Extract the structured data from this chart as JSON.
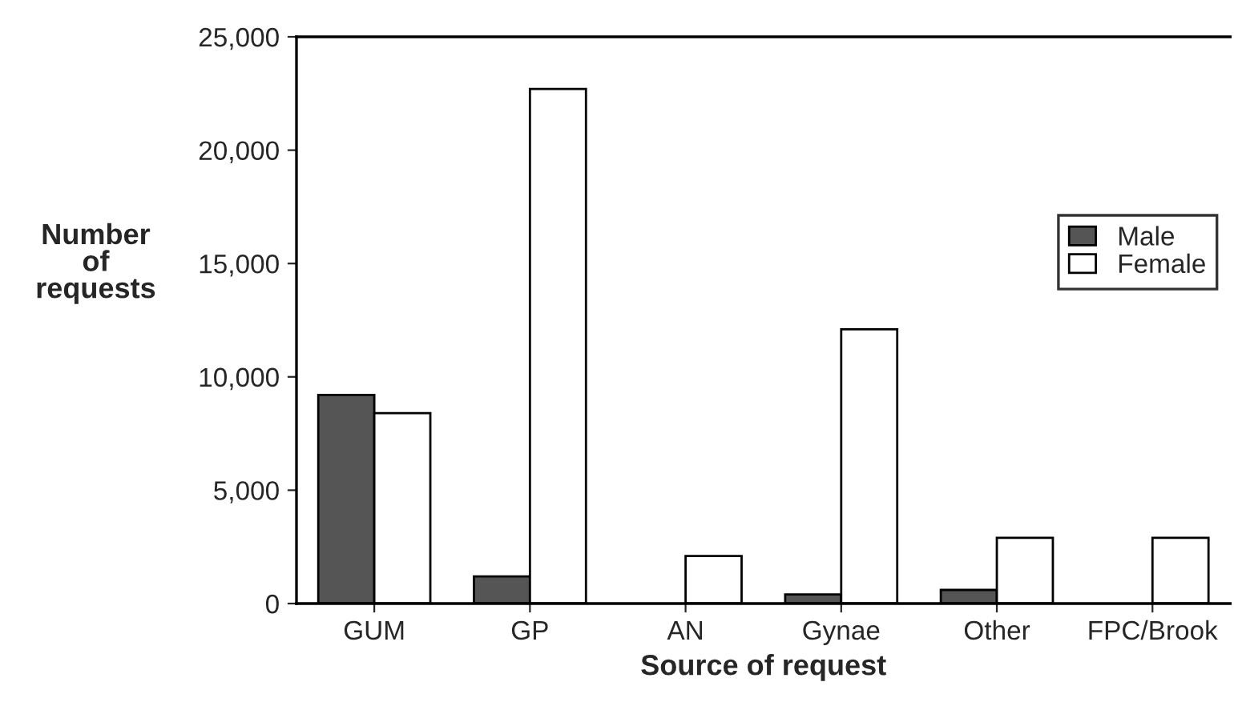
{
  "chart_data": {
    "type": "bar",
    "xlabel": "Source of request",
    "ylabel": "Number\nof\nrequests",
    "categories": [
      "GUM",
      "GP",
      "AN",
      "Gynae",
      "Other",
      "FPC/Brook"
    ],
    "series": [
      {
        "name": "Male",
        "color": "#555555",
        "values": [
          9200,
          1200,
          0,
          400,
          600,
          0
        ]
      },
      {
        "name": "Female",
        "color": "#ffffff",
        "values": [
          8400,
          22700,
          2100,
          12100,
          2900,
          2900
        ]
      }
    ],
    "ylim": [
      0,
      25000
    ],
    "yticks": [
      {
        "value": 0,
        "label": "0"
      },
      {
        "value": 5000,
        "label": "5,000"
      },
      {
        "value": 10000,
        "label": "10,000"
      },
      {
        "value": 15000,
        "label": "15,000"
      },
      {
        "value": 20000,
        "label": "20,000"
      },
      {
        "value": 25000,
        "label": "25,000"
      }
    ],
    "grid": false,
    "legend": "center right"
  }
}
